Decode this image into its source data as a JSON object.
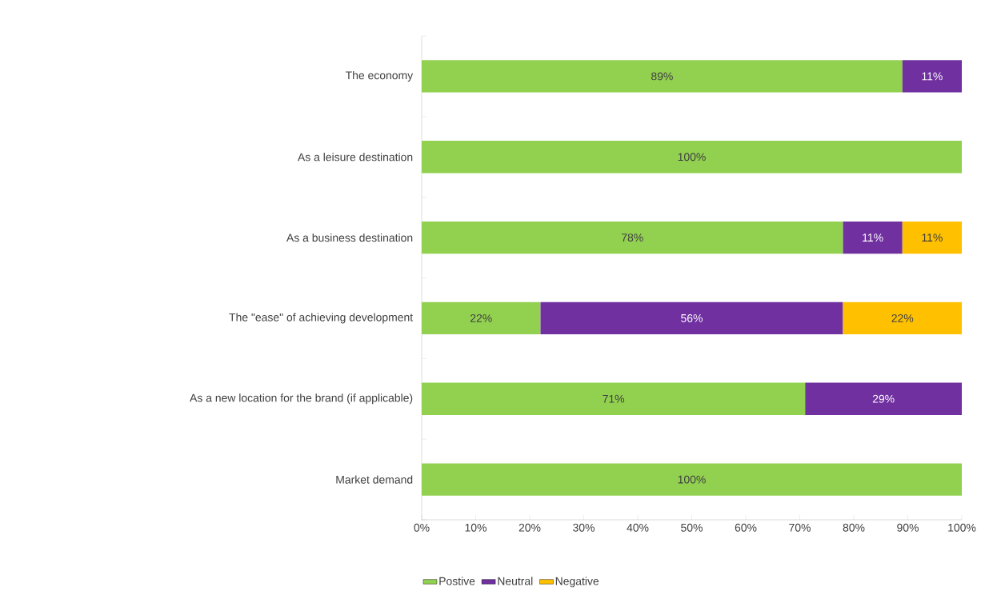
{
  "chart_data": {
    "type": "bar",
    "orientation": "horizontal",
    "stacked": true,
    "categories": [
      "The economy",
      "As a leisure destination",
      "As a business destination",
      "The \"ease\" of achieving development",
      "As a new location for the brand (if applicable)",
      "Market demand"
    ],
    "series": [
      {
        "name": "Postive",
        "color": "#92d050",
        "values": [
          89,
          100,
          78,
          22,
          71,
          100
        ],
        "value_labels": [
          "89%",
          "100%",
          "78%",
          "22%",
          "71%",
          "100%"
        ]
      },
      {
        "name": "Neutral",
        "color": "#7030a0",
        "values": [
          11,
          null,
          11,
          56,
          29,
          null
        ],
        "value_labels": [
          "11%",
          null,
          "11%",
          "56%",
          "29%",
          null
        ]
      },
      {
        "name": "Negative",
        "color": "#ffc000",
        "values": [
          null,
          null,
          11,
          22,
          null,
          null
        ],
        "value_labels": [
          null,
          null,
          "11%",
          "22%",
          null,
          null
        ]
      }
    ],
    "xlim": [
      0,
      100
    ],
    "xticks": [
      {
        "value": 0,
        "label": "0%"
      },
      {
        "value": 10,
        "label": "10%"
      },
      {
        "value": 20,
        "label": "20%"
      },
      {
        "value": 30,
        "label": "30%"
      },
      {
        "value": 40,
        "label": "40%"
      },
      {
        "value": 50,
        "label": "50%"
      },
      {
        "value": 60,
        "label": "60%"
      },
      {
        "value": 70,
        "label": "70%"
      },
      {
        "value": 80,
        "label": "80%"
      },
      {
        "value": 90,
        "label": "90%"
      },
      {
        "value": 100,
        "label": "100%"
      }
    ],
    "grid": false,
    "legend": "bottom"
  }
}
